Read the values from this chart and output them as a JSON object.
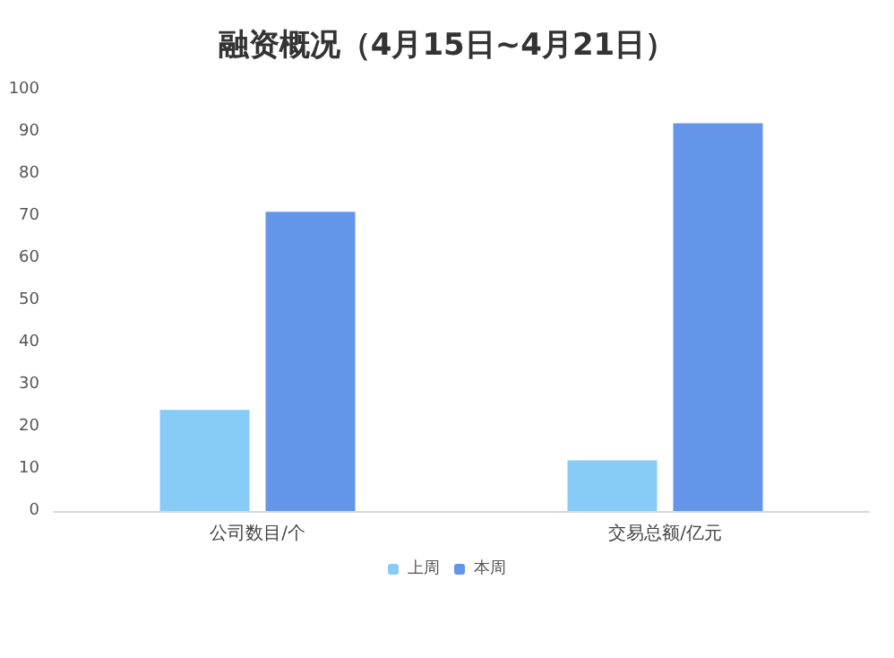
{
  "chart_data": {
    "type": "bar",
    "title": "融资概况（4月15日~4月21日）",
    "categories": [
      "公司数目/个",
      "交易总额/亿元"
    ],
    "series": [
      {
        "name": "上周",
        "color": "#87cbf7",
        "values": [
          24,
          12
        ]
      },
      {
        "name": "本周",
        "color": "#6495e8",
        "values": [
          71,
          92
        ]
      }
    ],
    "ylim": [
      0,
      100
    ],
    "yticks": [
      0,
      10,
      20,
      30,
      40,
      50,
      60,
      70,
      80,
      90,
      100
    ],
    "grid": false,
    "legend": "bottom"
  }
}
